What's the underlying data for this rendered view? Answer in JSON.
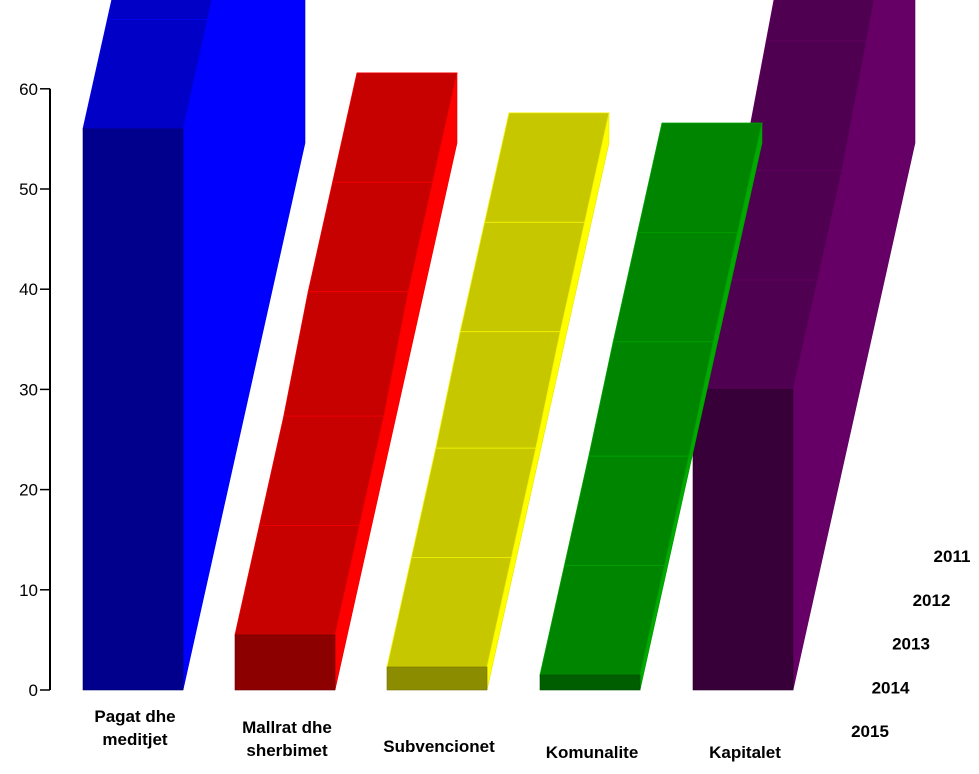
{
  "chart_data": {
    "type": "bar",
    "subtype": "3d-stepped-bar",
    "title": "",
    "xlabel": "",
    "ylabel": "",
    "ylim": [
      0,
      60
    ],
    "yticks": [
      "0",
      "10",
      "20",
      "30",
      "40",
      "50",
      "60"
    ],
    "grid": false,
    "categories": [
      {
        "lines": [
          "Pagat dhe",
          "meditjet"
        ],
        "color": "#0000ff"
      },
      {
        "lines": [
          "Mallrat dhe",
          "sherbimet"
        ],
        "color": "#ff0000"
      },
      {
        "lines": [
          "Subvencionet"
        ],
        "color": "#ffff00"
      },
      {
        "lines": [
          "Komunalite"
        ],
        "color": "#00aa00"
      },
      {
        "lines": [
          "Kapitalet"
        ],
        "color": "#660066"
      }
    ],
    "series": [
      {
        "name": "2015",
        "values": [
          56,
          5.5,
          2.3,
          1.5,
          30
        ]
      },
      {
        "name": "2014",
        "values": [
          56,
          5.5,
          2.3,
          1.5,
          30
        ]
      },
      {
        "name": "2013",
        "values": [
          56,
          5.5,
          2.3,
          1.5,
          30
        ]
      },
      {
        "name": "2012",
        "values": [
          56,
          7,
          3,
          2,
          32
        ]
      },
      {
        "name": "2011",
        "values": [
          56,
          7,
          3,
          2,
          34
        ]
      }
    ]
  }
}
